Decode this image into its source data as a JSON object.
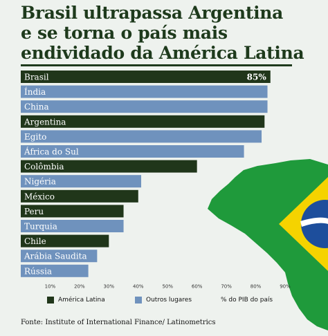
{
  "title_lines": [
    "Brasil ultrapassa Argentina",
    "e se torna o país mais",
    "endividado da América Latina"
  ],
  "colors": {
    "latin_america": "#20361a",
    "other": "#6f92bd",
    "title": "#1e3a1c",
    "map_green": "#1f9a3b",
    "map_yellow": "#f5d300",
    "map_blue": "#1d4e9c"
  },
  "legend": {
    "latin_america": "América Latina",
    "other": "Outros lugares",
    "unit": "% do PIB do país"
  },
  "source": "Fonte: Institute of International Finance/ Latinometrics",
  "chart_data": {
    "type": "bar",
    "orientation": "horizontal",
    "unit": "% do PIB do país",
    "categories": [
      "Brasil",
      "Índia",
      "China",
      "Argentina",
      "Egito",
      "África do Sul",
      "Colômbia",
      "Nigéria",
      "México",
      "Peru",
      "Turquia",
      "Chile",
      "Arábia Saudita",
      "Rússia"
    ],
    "values": [
      85,
      84,
      84,
      83,
      82,
      76,
      60,
      41,
      40,
      35,
      35,
      30,
      26,
      23
    ],
    "groups": [
      "latin_america",
      "other",
      "other",
      "latin_america",
      "other",
      "other",
      "latin_america",
      "other",
      "latin_america",
      "latin_america",
      "other",
      "latin_america",
      "other",
      "other"
    ],
    "data_labels": {
      "Brasil": "85%"
    },
    "xlim": [
      0,
      90
    ],
    "ticks": [
      10,
      20,
      30,
      40,
      50,
      60,
      70,
      80,
      90
    ],
    "tick_labels": [
      "10%",
      "20%",
      "30%",
      "40%",
      "50%",
      "60%",
      "70%",
      "80%",
      "90%"
    ],
    "grid": false,
    "legend_position": "bottom"
  }
}
